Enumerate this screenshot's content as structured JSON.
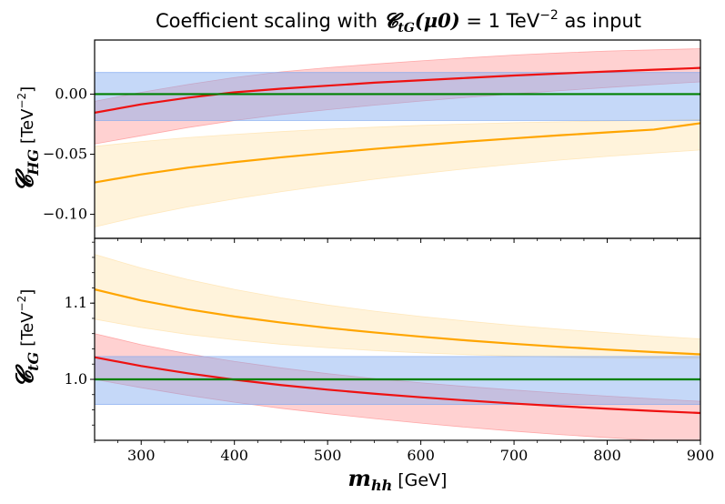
{
  "chart_data": [
    {
      "type": "line",
      "panel": "top",
      "title": "Coefficient scaling with 𝓒tG(μ0) = 1 TeV⁻² as input",
      "title_parts": {
        "prefix": "Coefficient scaling with ",
        "symbol": "𝓒",
        "subscript": "tG",
        "arg": "(μ0)",
        "equals": " = 1 TeV",
        "exponent": "−2",
        "suffix": " as input"
      },
      "xlabel": "",
      "ylabel_symbol": "𝓒",
      "ylabel_subscript": "HG",
      "ylabel_unit": "[TeV",
      "ylabel_unit_exponent": "−2",
      "ylabel_unit_close": "]",
      "xlim": [
        250,
        900
      ],
      "ylim": [
        -0.12,
        0.045
      ],
      "yticks": [
        0.0,
        -0.05,
        -0.1
      ],
      "ytick_labels": [
        "0.00",
        "−0.05",
        "−0.10"
      ],
      "x": [
        250,
        300,
        350,
        400,
        450,
        500,
        550,
        600,
        650,
        700,
        750,
        800,
        850,
        900
      ],
      "series": [
        {
          "color": "#ee1111",
          "band_color": "#ff9999",
          "values": [
            -0.0155,
            -0.0085,
            -0.003,
            0.0015,
            0.0045,
            0.007,
            0.0095,
            0.0115,
            0.0135,
            0.0155,
            0.0172,
            0.0188,
            0.0203,
            0.0218
          ],
          "band_upper": [
            -0.006,
            0.0015,
            0.008,
            0.0138,
            0.0185,
            0.022,
            0.025,
            0.0277,
            0.0302,
            0.0325,
            0.0343,
            0.0358,
            0.0368,
            0.0378
          ],
          "band_lower": [
            -0.0415,
            -0.0346,
            -0.0278,
            -0.022,
            -0.017,
            -0.013,
            -0.0092,
            -0.0058,
            -0.0027,
            0.0002,
            0.0029,
            0.0055,
            0.0079,
            0.0102
          ]
        },
        {
          "color": "#ffa500",
          "band_color": "#ffe4b0",
          "values": [
            -0.0735,
            -0.0668,
            -0.0612,
            -0.0566,
            -0.0526,
            -0.049,
            -0.0456,
            -0.0425,
            -0.0395,
            -0.0368,
            -0.0342,
            -0.0318,
            -0.0295,
            -0.0242
          ],
          "band_upper": [
            -0.0435,
            -0.0395,
            -0.0362,
            -0.0335,
            -0.0312,
            -0.0292,
            -0.0275,
            -0.026,
            -0.0248,
            -0.0238,
            -0.023,
            -0.0223,
            -0.0218,
            -0.0212
          ],
          "band_lower": [
            -0.1105,
            -0.1015,
            -0.0938,
            -0.0872,
            -0.0812,
            -0.0758,
            -0.0708,
            -0.0662,
            -0.062,
            -0.0582,
            -0.0548,
            -0.0518,
            -0.049,
            -0.0465
          ]
        },
        {
          "color": "#008000",
          "band_color": "#7fa8f0",
          "values": [
            0.0,
            0.0,
            0.0,
            0.0,
            0.0,
            0.0,
            0.0,
            0.0,
            0.0,
            0.0,
            0.0,
            0.0,
            0.0,
            0.0
          ],
          "band_upper": [
            0.018,
            0.018,
            0.018,
            0.018,
            0.018,
            0.018,
            0.018,
            0.018,
            0.018,
            0.018,
            0.018,
            0.018,
            0.018,
            0.018
          ],
          "band_lower": [
            -0.022,
            -0.022,
            -0.022,
            -0.022,
            -0.022,
            -0.022,
            -0.022,
            -0.022,
            -0.022,
            -0.022,
            -0.022,
            -0.022,
            -0.022,
            -0.022
          ]
        }
      ]
    },
    {
      "type": "line",
      "panel": "bottom",
      "xlabel_symbol": "m",
      "xlabel_subscript": "hh",
      "xlabel_unit": "[GeV]",
      "ylabel_symbol": "𝓒",
      "ylabel_subscript": "tG",
      "ylabel_unit": "[TeV",
      "ylabel_unit_exponent": "−2",
      "ylabel_unit_close": "]",
      "xlim": [
        250,
        900
      ],
      "ylim": [
        0.92,
        1.185
      ],
      "xticks": [
        300,
        400,
        500,
        600,
        700,
        800,
        900
      ],
      "xtick_labels": [
        "300",
        "400",
        "500",
        "600",
        "700",
        "800",
        "900"
      ],
      "yticks": [
        1.0,
        1.1
      ],
      "ytick_labels": [
        "1.0",
        "1.1"
      ],
      "x": [
        250,
        300,
        350,
        400,
        450,
        500,
        550,
        600,
        650,
        700,
        750,
        800,
        850,
        900
      ],
      "series": [
        {
          "color": "#ffa500",
          "band_color": "#ffe4b0",
          "values": [
            1.118,
            1.1035,
            1.092,
            1.0825,
            1.0745,
            1.0675,
            1.0615,
            1.056,
            1.051,
            1.0466,
            1.0426,
            1.039,
            1.0358,
            1.0328
          ],
          "band_upper": [
            1.164,
            1.146,
            1.131,
            1.118,
            1.107,
            1.0975,
            1.0895,
            1.0825,
            1.0763,
            1.0707,
            1.0657,
            1.0612,
            1.057,
            1.053
          ],
          "band_lower": [
            1.079,
            1.068,
            1.059,
            1.052,
            1.046,
            1.0415,
            1.0378,
            1.0348,
            1.0324,
            1.0306,
            1.0292,
            1.0283,
            1.0278,
            1.0275
          ]
        },
        {
          "color": "#ee1111",
          "band_color": "#ff9999",
          "values": [
            1.029,
            1.0175,
            1.008,
            0.9995,
            0.9925,
            0.9865,
            0.9812,
            0.9765,
            0.9722,
            0.9683,
            0.9648,
            0.9615,
            0.9585,
            0.9558
          ],
          "band_upper": [
            1.06,
            1.0455,
            1.0335,
            1.0235,
            1.015,
            1.0075,
            1.001,
            0.9955,
            0.9905,
            0.986,
            0.9818,
            0.978,
            0.9745,
            0.9712
          ],
          "band_lower": [
            1.0,
            0.989,
            0.979,
            0.97,
            0.962,
            0.955,
            0.9485,
            0.9425,
            0.937,
            0.932,
            0.9275,
            0.9235,
            0.92,
            0.917
          ]
        },
        {
          "color": "#008000",
          "band_color": "#7fa8f0",
          "values": [
            1.0,
            1.0,
            1.0,
            1.0,
            1.0,
            1.0,
            1.0,
            1.0,
            1.0,
            1.0,
            1.0,
            1.0,
            1.0,
            1.0
          ],
          "band_upper": [
            1.03,
            1.03,
            1.03,
            1.03,
            1.03,
            1.03,
            1.03,
            1.03,
            1.03,
            1.03,
            1.03,
            1.03,
            1.03,
            1.03
          ],
          "band_lower": [
            0.967,
            0.967,
            0.967,
            0.967,
            0.967,
            0.967,
            0.967,
            0.967,
            0.967,
            0.967,
            0.967,
            0.967,
            0.967,
            0.967
          ]
        }
      ]
    }
  ]
}
